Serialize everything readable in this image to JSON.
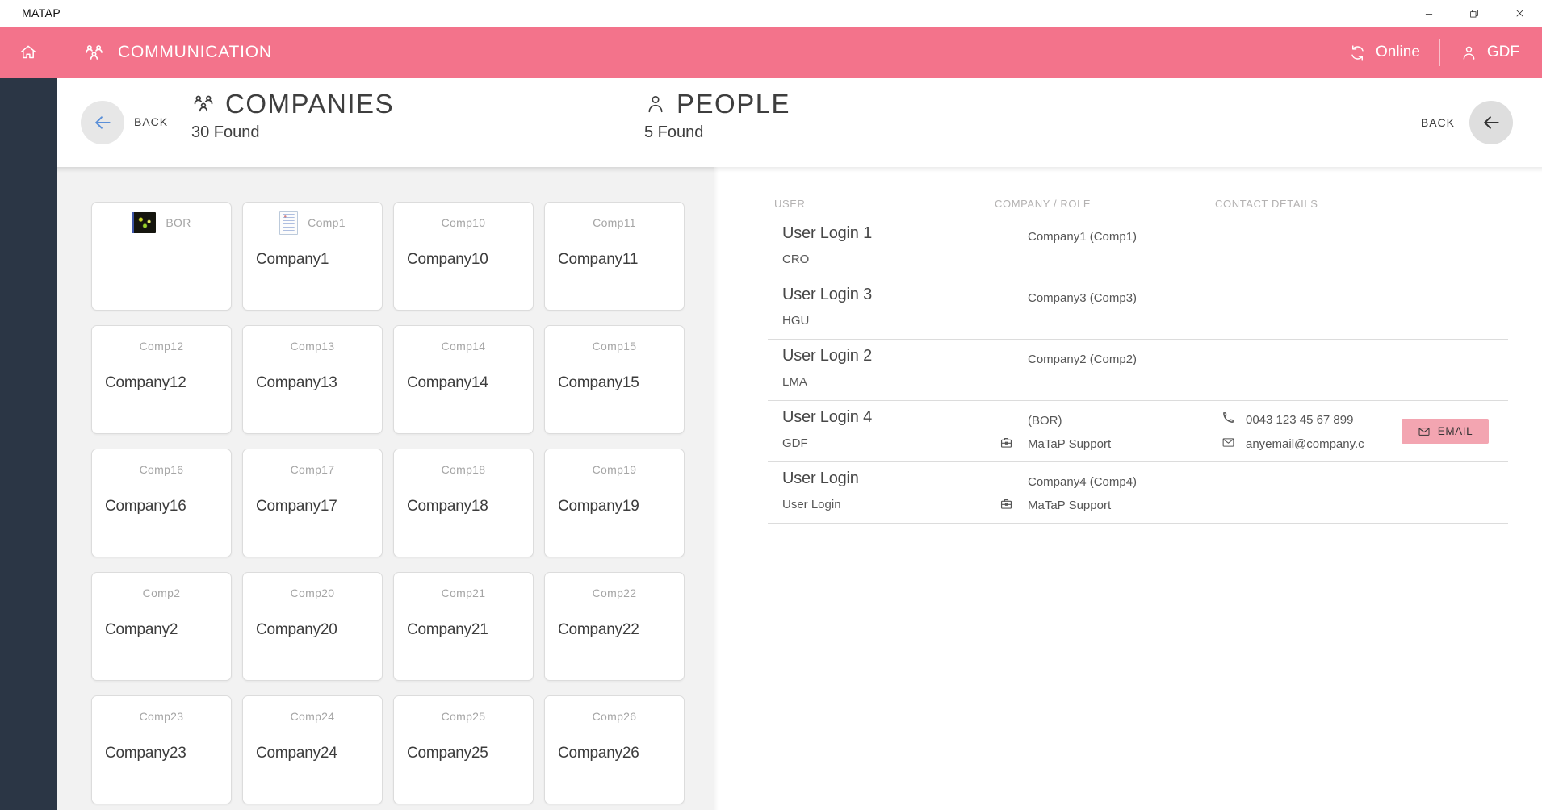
{
  "titlebar": {
    "app_title": "MATAP"
  },
  "appbar": {
    "section_title": "COMMUNICATION",
    "online_label": "Online",
    "user_label": "GDF"
  },
  "companies": {
    "back_label": "BACK",
    "title": "COMPANIES",
    "subtitle": "30 Found",
    "cards": [
      {
        "code": "BOR",
        "name": "",
        "logo": "photo"
      },
      {
        "code": "Comp1",
        "name": "Company1",
        "logo": "document"
      },
      {
        "code": "Comp10",
        "name": "Company10"
      },
      {
        "code": "Comp11",
        "name": "Company11"
      },
      {
        "code": "Comp12",
        "name": "Company12"
      },
      {
        "code": "Comp13",
        "name": "Company13"
      },
      {
        "code": "Comp14",
        "name": "Company14"
      },
      {
        "code": "Comp15",
        "name": "Company15"
      },
      {
        "code": "Comp16",
        "name": "Company16"
      },
      {
        "code": "Comp17",
        "name": "Company17"
      },
      {
        "code": "Comp18",
        "name": "Company18"
      },
      {
        "code": "Comp19",
        "name": "Company19"
      },
      {
        "code": "Comp2",
        "name": "Company2"
      },
      {
        "code": "Comp20",
        "name": "Company20"
      },
      {
        "code": "Comp21",
        "name": "Company21"
      },
      {
        "code": "Comp22",
        "name": "Company22"
      },
      {
        "code": "Comp23",
        "name": "Company23"
      },
      {
        "code": "Comp24",
        "name": "Company24"
      },
      {
        "code": "Comp25",
        "name": "Company25"
      },
      {
        "code": "Comp26",
        "name": "Company26"
      }
    ]
  },
  "people": {
    "back_label": "BACK",
    "title": "PEOPLE",
    "subtitle": "5 Found",
    "columns": {
      "user": "USER",
      "company": "COMPANY / ROLE",
      "contact": "CONTACT DETAILS"
    },
    "rows": [
      {
        "name": "User Login 1",
        "sub": "CRO",
        "company": "Company1 (Comp1)"
      },
      {
        "name": "User Login 3",
        "sub": "HGU",
        "company": "Company3 (Comp3)"
      },
      {
        "name": "User Login 2",
        "sub": "LMA",
        "company": "Company2 (Comp2)"
      },
      {
        "name": "User Login 4",
        "sub": "GDF",
        "company": "(BOR)",
        "support": "MaTaP Support",
        "phone": "0043 123 45 67 899",
        "email": "anyemail@company.c",
        "email_button": "EMAIL"
      },
      {
        "name": "User Login",
        "sub": "User Login",
        "company": "Company4 (Comp4)",
        "support": "MaTaP Support"
      }
    ]
  },
  "colors": {
    "accent_pink": "#f3738b",
    "button_pink": "#f3a5b1",
    "sidebar_dark": "#2b3645",
    "back_arrow_blue": "#5a8fd8"
  }
}
